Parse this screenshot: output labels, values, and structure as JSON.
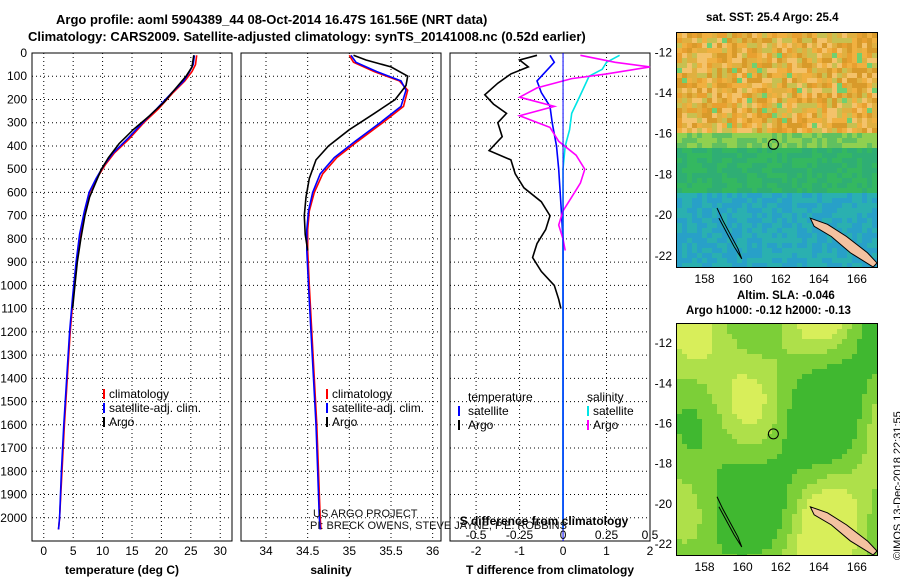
{
  "title": {
    "line1": "Argo profile: aoml 5904389_44 08-Oct-2014 16.47S 161.56E (NRT data)",
    "line2": "Climatology: CARS2009. Satellite-adjusted climatology: synTS_20141008.nc (0.52d earlier)"
  },
  "colors": {
    "climatology": "#ff0000",
    "satellite": "#0000ff",
    "argo": "#000000",
    "sal_satellite": "#00e5e5",
    "sal_argo": "#ff00ff"
  },
  "chart_data": [
    {
      "type": "line",
      "xlabel": "temperature (deg C)",
      "ylabel": "",
      "xlim": [
        -2,
        32
      ],
      "ylim": [
        2100,
        0
      ],
      "xticks": [
        "0",
        "5",
        "10",
        "15",
        "20",
        "25",
        "30"
      ],
      "xtick_values": [
        0,
        5,
        10,
        15,
        20,
        25,
        30
      ],
      "yticks": [
        "0",
        "100",
        "200",
        "300",
        "400",
        "500",
        "600",
        "700",
        "800",
        "900",
        "1000",
        "1100",
        "1200",
        "1300",
        "1400",
        "1500",
        "1600",
        "1700",
        "1800",
        "1900",
        "2000"
      ],
      "legend": [
        "climatology",
        "satellite-adj. clim.",
        "Argo"
      ],
      "series": [
        {
          "name": "climatology",
          "color": "#ff0000",
          "points": [
            [
              26,
              10
            ],
            [
              25.8,
              50
            ],
            [
              25.2,
              80
            ],
            [
              24,
              120
            ],
            [
              22,
              170
            ],
            [
              19.5,
              240
            ],
            [
              17,
              300
            ],
            [
              14.5,
              370
            ],
            [
              12,
              430
            ],
            [
              10.5,
              480
            ],
            [
              9,
              540
            ],
            [
              7.8,
              600
            ],
            [
              7,
              680
            ],
            [
              6.2,
              780
            ],
            [
              5.6,
              900
            ],
            [
              5,
              1050
            ],
            [
              4.5,
              1200
            ],
            [
              4,
              1400
            ],
            [
              3.5,
              1600
            ],
            [
              3.1,
              1800
            ],
            [
              2.7,
              2000
            ],
            [
              2.5,
              2050
            ]
          ]
        },
        {
          "name": "satellite-adj. clim.",
          "color": "#0000ff",
          "points": [
            [
              25.6,
              10
            ],
            [
              25.4,
              50
            ],
            [
              24.8,
              80
            ],
            [
              23.8,
              120
            ],
            [
              21.8,
              170
            ],
            [
              19.2,
              240
            ],
            [
              16.8,
              300
            ],
            [
              14.2,
              370
            ],
            [
              11.8,
              430
            ],
            [
              10.3,
              480
            ],
            [
              8.9,
              540
            ],
            [
              7.7,
              600
            ],
            [
              6.9,
              680
            ],
            [
              6.1,
              780
            ],
            [
              5.5,
              900
            ],
            [
              4.9,
              1050
            ],
            [
              4.4,
              1200
            ],
            [
              3.9,
              1400
            ],
            [
              3.4,
              1600
            ],
            [
              3.0,
              1800
            ],
            [
              2.7,
              2000
            ],
            [
              2.5,
              2050
            ]
          ]
        },
        {
          "name": "Argo",
          "color": "#000000",
          "points": [
            [
              25.5,
              10
            ],
            [
              25.2,
              60
            ],
            [
              24.2,
              100
            ],
            [
              22.5,
              150
            ],
            [
              20.5,
              210
            ],
            [
              18,
              270
            ],
            [
              15.2,
              330
            ],
            [
              12.8,
              390
            ],
            [
              11,
              450
            ],
            [
              9.8,
              500
            ],
            [
              8.8,
              560
            ],
            [
              7.8,
              620
            ],
            [
              7,
              700
            ],
            [
              6.3,
              800
            ],
            [
              5.7,
              900
            ],
            [
              5.3,
              1000
            ],
            [
              4.9,
              1100
            ]
          ]
        }
      ]
    },
    {
      "type": "line",
      "xlabel": "salinity",
      "xlim": [
        33.7,
        36.1
      ],
      "ylim": [
        2100,
        0
      ],
      "xticks": [
        "34",
        "34.5",
        "35",
        "35.5",
        "36"
      ],
      "xtick_values": [
        34,
        34.5,
        35,
        35.5,
        36
      ],
      "legend": [
        "climatology",
        "satellite-adj. clim.",
        "Argo"
      ],
      "series": [
        {
          "name": "climatology",
          "color": "#ff0000",
          "points": [
            [
              35.0,
              10
            ],
            [
              35.05,
              40
            ],
            [
              35.3,
              80
            ],
            [
              35.6,
              120
            ],
            [
              35.7,
              160
            ],
            [
              35.65,
              230
            ],
            [
              35.4,
              300
            ],
            [
              35.1,
              380
            ],
            [
              34.85,
              450
            ],
            [
              34.68,
              520
            ],
            [
              34.58,
              600
            ],
            [
              34.52,
              680
            ],
            [
              34.5,
              760
            ],
            [
              34.5,
              850
            ],
            [
              34.52,
              1000
            ],
            [
              34.55,
              1200
            ],
            [
              34.58,
              1400
            ],
            [
              34.61,
              1600
            ],
            [
              34.63,
              1800
            ],
            [
              34.65,
              2000
            ],
            [
              34.66,
              2050
            ]
          ]
        },
        {
          "name": "satellite-adj. clim.",
          "color": "#0000ff",
          "points": [
            [
              35.02,
              10
            ],
            [
              35.08,
              40
            ],
            [
              35.33,
              80
            ],
            [
              35.62,
              120
            ],
            [
              35.68,
              160
            ],
            [
              35.62,
              230
            ],
            [
              35.37,
              300
            ],
            [
              35.07,
              380
            ],
            [
              34.82,
              450
            ],
            [
              34.65,
              520
            ],
            [
              34.56,
              600
            ],
            [
              34.51,
              680
            ],
            [
              34.49,
              760
            ],
            [
              34.49,
              850
            ],
            [
              34.51,
              1000
            ],
            [
              34.54,
              1200
            ],
            [
              34.57,
              1400
            ],
            [
              34.6,
              1600
            ],
            [
              34.62,
              1800
            ],
            [
              34.64,
              2000
            ],
            [
              34.65,
              2050
            ]
          ]
        },
        {
          "name": "Argo",
          "color": "#000000",
          "points": [
            [
              35.05,
              10
            ],
            [
              35.2,
              30
            ],
            [
              35.5,
              60
            ],
            [
              35.7,
              100
            ],
            [
              35.68,
              140
            ],
            [
              35.55,
              200
            ],
            [
              35.3,
              260
            ],
            [
              35.0,
              330
            ],
            [
              34.75,
              400
            ],
            [
              34.6,
              460
            ],
            [
              34.52,
              540
            ],
            [
              34.48,
              620
            ],
            [
              34.46,
              700
            ],
            [
              34.47,
              780
            ],
            [
              34.5,
              850
            ]
          ]
        }
      ]
    },
    {
      "type": "line",
      "xlabel": "T difference from climatology",
      "top_xlabel": "S difference from climatology",
      "xlim": [
        -2.6,
        2.0
      ],
      "ylim": [
        2100,
        0
      ],
      "xticks": [
        "-2",
        "-1",
        "0",
        "1",
        "2"
      ],
      "xtick_values": [
        -2,
        -1,
        0,
        1,
        2
      ],
      "top_xticks": [
        "-0.5",
        "-0.25",
        "0",
        "0.25",
        "0.5"
      ],
      "legend_left_title": "temperature",
      "legend_right_title": "salinity",
      "legend": [
        "satellite",
        "Argo",
        "satellite",
        "Argo"
      ],
      "series": [
        {
          "name": "T satellite",
          "color": "#0000ff",
          "points": [
            [
              -0.3,
              10
            ],
            [
              -0.2,
              40
            ],
            [
              -0.4,
              80
            ],
            [
              -0.6,
              120
            ],
            [
              -0.5,
              170
            ],
            [
              -0.3,
              230
            ],
            [
              -0.25,
              300
            ],
            [
              -0.15,
              400
            ],
            [
              -0.1,
              500
            ],
            [
              -0.05,
              650
            ],
            [
              0,
              800
            ],
            [
              0,
              1000
            ],
            [
              0,
              1500
            ],
            [
              0,
              2050
            ]
          ]
        },
        {
          "name": "T Argo",
          "color": "#000000",
          "points": [
            [
              -0.6,
              10
            ],
            [
              -1.0,
              30
            ],
            [
              -0.8,
              60
            ],
            [
              -1.2,
              90
            ],
            [
              -1.5,
              130
            ],
            [
              -1.8,
              180
            ],
            [
              -1.6,
              220
            ],
            [
              -1.3,
              260
            ],
            [
              -1.5,
              300
            ],
            [
              -1.4,
              360
            ],
            [
              -1.7,
              420
            ],
            [
              -1.2,
              460
            ],
            [
              -1.1,
              520
            ],
            [
              -0.9,
              580
            ],
            [
              -0.5,
              640
            ],
            [
              -0.3,
              700
            ],
            [
              -0.4,
              760
            ],
            [
              -0.6,
              820
            ],
            [
              -0.7,
              880
            ],
            [
              -0.5,
              940
            ],
            [
              -0.2,
              1000
            ],
            [
              -0.1,
              1060
            ],
            [
              -0.05,
              1100
            ]
          ]
        },
        {
          "name": "S satellite",
          "color": "#00e5e5",
          "points": [
            [
              1.3,
              10
            ],
            [
              1.0,
              40
            ],
            [
              0.9,
              70
            ],
            [
              0.6,
              100
            ],
            [
              0.5,
              140
            ],
            [
              0.35,
              200
            ],
            [
              0.2,
              260
            ],
            [
              0.15,
              330
            ],
            [
              0.05,
              400
            ],
            [
              0.0,
              500
            ],
            [
              0.0,
              800
            ],
            [
              0.0,
              2050
            ]
          ]
        },
        {
          "name": "S Argo",
          "color": "#ff00ff",
          "points": [
            [
              0.4,
              10
            ],
            [
              1.2,
              40
            ],
            [
              2.0,
              60
            ],
            [
              1.0,
              90
            ],
            [
              0.2,
              110
            ],
            [
              -0.6,
              150
            ],
            [
              -1.0,
              190
            ],
            [
              -0.2,
              230
            ],
            [
              -1.0,
              270
            ],
            [
              -0.3,
              320
            ],
            [
              -0.1,
              380
            ],
            [
              0.3,
              440
            ],
            [
              0.5,
              500
            ],
            [
              0.4,
              560
            ],
            [
              0.2,
              620
            ],
            [
              0.0,
              680
            ],
            [
              -0.1,
              740
            ],
            [
              0.0,
              800
            ],
            [
              0.05,
              850
            ]
          ]
        }
      ]
    },
    {
      "type": "heatmap",
      "title": "sat. SST: 25.4 Argo: 25.4",
      "xticks": [
        "158",
        "160",
        "162",
        "164",
        "166"
      ],
      "yticks": [
        "-12",
        "-14",
        "-16",
        "-18",
        "-20",
        "-22"
      ],
      "xlim": [
        156.5,
        167
      ],
      "ylim": [
        -22.5,
        -11
      ],
      "argo_position": [
        161.56,
        -16.47
      ]
    },
    {
      "type": "heatmap",
      "title": "Altim. SLA: -0.046",
      "subtitle": "Argo h1000: -0.12 h2000: -0.13",
      "xticks": [
        "158",
        "160",
        "162",
        "164",
        "166"
      ],
      "yticks": [
        "-12",
        "-14",
        "-16",
        "-18",
        "-20",
        "-22"
      ],
      "xlim": [
        156.5,
        167
      ],
      "ylim": [
        -22.5,
        -11
      ],
      "argo_position": [
        161.56,
        -16.47
      ]
    }
  ],
  "legend_labels": {
    "climatology": "climatology",
    "satellite_adj": "satellite-adj. clim.",
    "argo": "Argo",
    "temperature": "temperature",
    "salinity": "salinity",
    "satellite": "satellite"
  },
  "footer": {
    "project_line1": "US ARGO PROJECT",
    "project_line2": "PI: BRECK OWENS, STEVE JAYNE, P.E. ROBBINS",
    "credit": "©IMOS 13-Dec-2018 22:31:55"
  }
}
